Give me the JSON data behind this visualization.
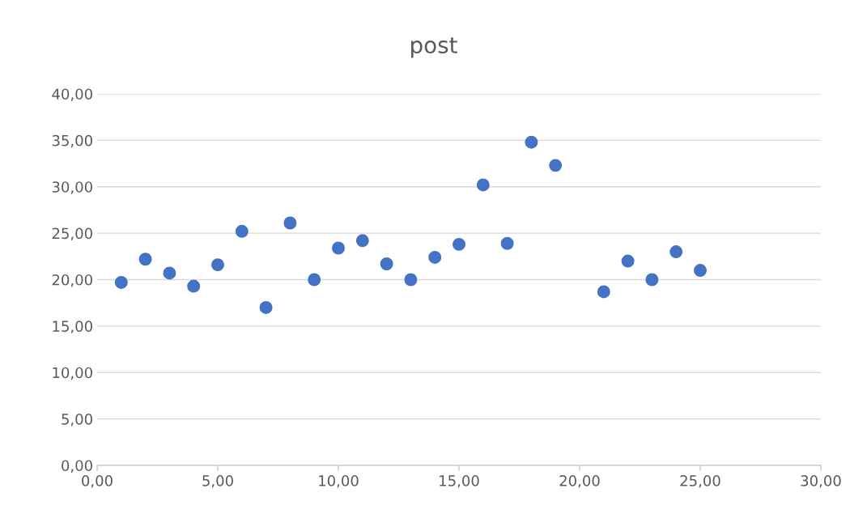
{
  "chart_data": {
    "type": "scatter",
    "title": "post",
    "x": [
      1,
      2,
      3,
      4,
      5,
      6,
      7,
      8,
      9,
      10,
      11,
      12,
      13,
      14,
      15,
      16,
      17,
      18,
      19,
      21,
      22,
      23,
      24,
      25
    ],
    "series": [
      {
        "color": "#4472c4",
        "values": [
          19.7,
          22.2,
          20.7,
          19.3,
          21.6,
          25.2,
          17.0,
          26.1,
          20.0,
          23.4,
          24.2,
          21.7,
          20.0,
          22.4,
          23.8,
          30.2,
          23.9,
          34.8,
          32.3,
          18.7,
          22.0,
          20.0,
          23.0,
          21.0
        ]
      }
    ],
    "xlim": [
      0,
      30
    ],
    "xticks": [
      {
        "value": 0,
        "label": "0,00"
      },
      {
        "value": 5,
        "label": "5,00"
      },
      {
        "value": 10,
        "label": "10,00"
      },
      {
        "value": 15,
        "label": "15,00"
      },
      {
        "value": 20,
        "label": "20,00"
      },
      {
        "value": 25,
        "label": "25,00"
      },
      {
        "value": 30,
        "label": "30,00"
      }
    ],
    "ylim": [
      0,
      40
    ],
    "yticks": [
      {
        "value": 0,
        "label": "0,00"
      },
      {
        "value": 5,
        "label": "5,00"
      },
      {
        "value": 10,
        "label": "10,00"
      },
      {
        "value": 15,
        "label": "15,00"
      },
      {
        "value": 20,
        "label": "20,00"
      },
      {
        "value": 25,
        "label": "25,00"
      },
      {
        "value": 30,
        "label": "30,00"
      },
      {
        "value": 35,
        "label": "35,00"
      },
      {
        "value": 40,
        "label": "40,00"
      }
    ],
    "grid": "y",
    "marker": "circle"
  }
}
